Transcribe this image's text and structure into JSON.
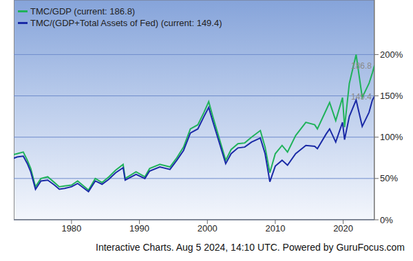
{
  "chart_data": {
    "type": "line",
    "footer": "Interactive Charts. Aug 5 2024, 14:10 UTC. Powered by GuruFocus.com",
    "x": [
      1971.0,
      1972.0,
      1972.9,
      1973.5,
      1974.0,
      1974.7,
      1975.5,
      1976.5,
      1977.5,
      1978.2,
      1979.0,
      1980.0,
      1980.9,
      1982.5,
      1983.5,
      1984.5,
      1985.5,
      1986.5,
      1987.6,
      1987.9,
      1989.5,
      1990.8,
      1991.5,
      1993.0,
      1994.5,
      1995.5,
      1996.5,
      1997.5,
      1998.6,
      1999.5,
      2000.2,
      2000.8,
      2001.7,
      2002.7,
      2003.5,
      2004.5,
      2005.5,
      2006.5,
      2007.8,
      2008.5,
      2009.2,
      2010.0,
      2011.0,
      2011.8,
      2013.0,
      2014.5,
      2015.8,
      2016.2,
      2017.5,
      2018.0,
      2018.9,
      2019.9,
      2020.2,
      2020.9,
      2021.9,
      2022.8,
      2023.8,
      2024.3,
      2024.6
    ],
    "series": [
      {
        "name": "TMC/GDP (current: 186.8)",
        "color": "#1fb25a",
        "values": [
          78,
          80,
          82,
          72,
          62,
          40,
          50,
          52,
          45,
          40,
          41,
          42,
          47,
          36,
          50,
          45,
          52,
          60,
          67,
          50,
          58,
          52,
          62,
          67,
          64,
          75,
          88,
          110,
          115,
          130,
          143,
          125,
          100,
          72,
          85,
          92,
          93,
          100,
          108,
          88,
          57,
          80,
          90,
          82,
          102,
          118,
          115,
          110,
          133,
          142,
          120,
          148,
          112,
          165,
          200,
          148,
          165,
          178,
          186.8
        ]
      },
      {
        "name": "TMC/(GDP+Total Assets of Fed) (current: 149.4)",
        "color": "#1a2aa6",
        "values": [
          73,
          76,
          77,
          68,
          58,
          37,
          47,
          48,
          42,
          37,
          38,
          40,
          44,
          34,
          47,
          43,
          49,
          57,
          63,
          48,
          55,
          50,
          59,
          64,
          61,
          72,
          84,
          105,
          110,
          125,
          136,
          119,
          95,
          68,
          80,
          87,
          88,
          94,
          99,
          80,
          46,
          65,
          72,
          66,
          80,
          90,
          89,
          86,
          104,
          110,
          94,
          118,
          97,
          125,
          145,
          113,
          130,
          145,
          149.4
        ]
      }
    ],
    "xlim": [
      1971.5,
      2024.6
    ],
    "xticks": [
      1980,
      1990,
      2000,
      2010,
      2020
    ],
    "ylim": [
      0,
      266
    ],
    "yticks": [
      {
        "value": 0,
        "label": "0%"
      },
      {
        "value": 50,
        "label": "50%"
      },
      {
        "value": 100,
        "label": "100%"
      },
      {
        "value": 150,
        "label": "150%"
      },
      {
        "value": 200,
        "label": "200%"
      }
    ],
    "grid": true,
    "legend": "upper left",
    "annotations": [
      {
        "text": "186.8",
        "x": 2024.6,
        "y": 186.8
      },
      {
        "text": "149.4",
        "x": 2024.6,
        "y": 149.4
      }
    ]
  }
}
